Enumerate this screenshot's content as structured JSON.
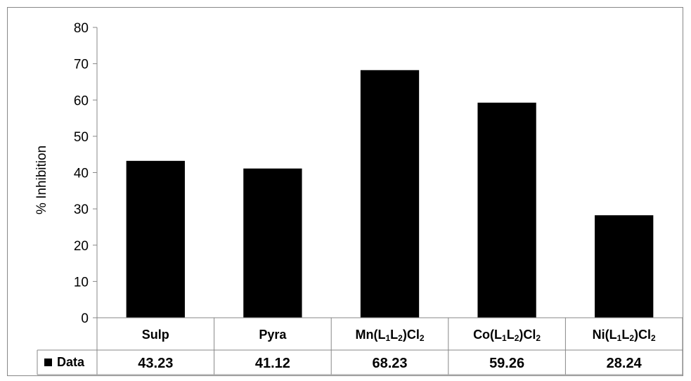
{
  "chart_data": {
    "type": "bar",
    "ylabel": "% Inhibition",
    "xlabel": "",
    "ylim": [
      0,
      80
    ],
    "yticks": [
      0,
      10,
      20,
      30,
      40,
      50,
      60,
      70,
      80
    ],
    "grid": false,
    "legend": "data-table-left",
    "bar_color": "#000000",
    "categories": [
      {
        "base": "Sulp",
        "parts": [
          {
            "t": "Sulp",
            "sub": false
          }
        ]
      },
      {
        "base": "Pyra",
        "parts": [
          {
            "t": "Pyra",
            "sub": false
          }
        ]
      },
      {
        "base": "Mn(L1L2)Cl2",
        "parts": [
          {
            "t": "Mn(L",
            "sub": false
          },
          {
            "t": "1",
            "sub": true
          },
          {
            "t": "L",
            "sub": false
          },
          {
            "t": "2",
            "sub": true
          },
          {
            "t": ")Cl",
            "sub": false
          },
          {
            "t": "2",
            "sub": true
          }
        ]
      },
      {
        "base": "Co(L1L2)Cl2",
        "parts": [
          {
            "t": "Co(L",
            "sub": false
          },
          {
            "t": "1",
            "sub": true
          },
          {
            "t": "L",
            "sub": false
          },
          {
            "t": "2",
            "sub": true
          },
          {
            "t": ")Cl",
            "sub": false
          },
          {
            "t": "2",
            "sub": true
          }
        ]
      },
      {
        "base": "Ni(L1L2)Cl2",
        "parts": [
          {
            "t": "Ni(L",
            "sub": false
          },
          {
            "t": "1",
            "sub": true
          },
          {
            "t": "L",
            "sub": false
          },
          {
            "t": "2",
            "sub": true
          },
          {
            "t": ")Cl",
            "sub": false
          },
          {
            "t": "2",
            "sub": true
          }
        ]
      }
    ],
    "series": [
      {
        "name": "Data",
        "values": [
          43.23,
          41.12,
          68.23,
          59.26,
          28.24
        ],
        "value_labels": [
          "43.23",
          "41.12",
          "68.23",
          "59.26",
          "28.24"
        ]
      }
    ]
  }
}
